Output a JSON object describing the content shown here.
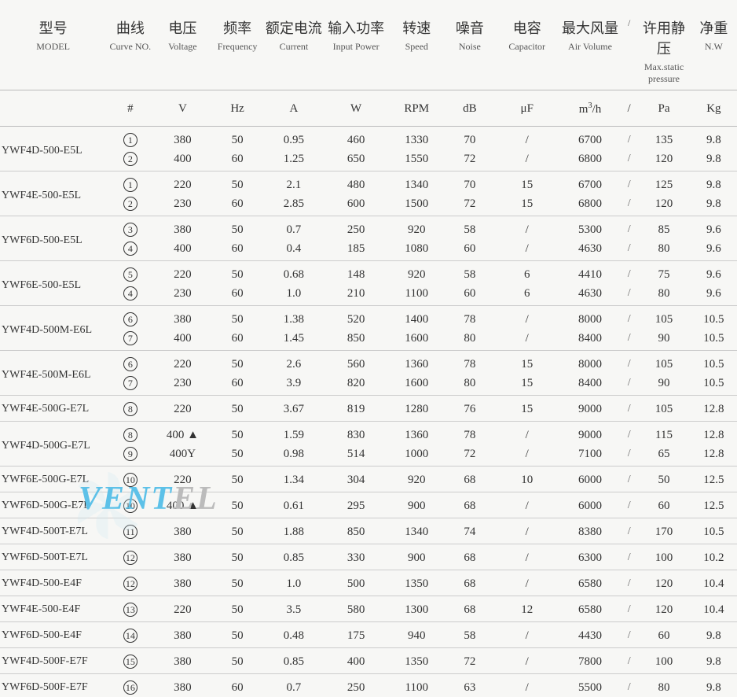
{
  "background_color": "#f7f7f5",
  "border_color": "#cccccc",
  "text_color": "#333333",
  "watermark": {
    "text_front": "VENT",
    "text_back": "EL",
    "color_front": "#5dc1e8",
    "color_back": "#bbbbbb",
    "fan_fill": "#cfe8f3"
  },
  "headers": [
    {
      "cn": "型号",
      "en": "MODEL",
      "unit": ""
    },
    {
      "cn": "曲线",
      "en": "Curve NO.",
      "unit": "#"
    },
    {
      "cn": "电压",
      "en": "Voltage",
      "unit": "V"
    },
    {
      "cn": "频率",
      "en": "Frequency",
      "unit": "Hz"
    },
    {
      "cn": "额定电流",
      "en": "Current",
      "unit": "A"
    },
    {
      "cn": "输入功率",
      "en": "Input Power",
      "unit": "W"
    },
    {
      "cn": "转速",
      "en": "Speed",
      "unit": "RPM"
    },
    {
      "cn": "噪音",
      "en": "Noise",
      "unit": "dB"
    },
    {
      "cn": "电容",
      "en": "Capacitor",
      "unit": "μF"
    },
    {
      "cn": "最大风量",
      "en": "Air Volume",
      "unit": "m³/h"
    },
    {
      "cn": "/",
      "en": "/",
      "unit": "/"
    },
    {
      "cn": "许用静压",
      "en": "Max.static pressure",
      "unit": "Pa"
    },
    {
      "cn": "净重",
      "en": "N.W",
      "unit": "Kg"
    }
  ],
  "rows": [
    {
      "model": "YWF4D-500-E5L",
      "curve": "1",
      "voltage": "380",
      "freq": "50",
      "current": "0.95",
      "power": "460",
      "speed": "1330",
      "noise": "70",
      "cap": "/",
      "air": "6700",
      "pres": "135",
      "nw": "9.8",
      "rs": 2,
      "top": true
    },
    {
      "model": "",
      "curve": "2",
      "voltage": "400",
      "freq": "60",
      "current": "1.25",
      "power": "650",
      "speed": "1550",
      "noise": "72",
      "cap": "/",
      "air": "6800",
      "pres": "120",
      "nw": "9.8",
      "sep": true
    },
    {
      "model": "YWF4E-500-E5L",
      "curve": "1",
      "voltage": "220",
      "freq": "50",
      "current": "2.1",
      "power": "480",
      "speed": "1340",
      "noise": "70",
      "cap": "15",
      "air": "6700",
      "pres": "125",
      "nw": "9.8",
      "rs": 2,
      "top": true
    },
    {
      "model": "",
      "curve": "2",
      "voltage": "230",
      "freq": "60",
      "current": "2.85",
      "power": "600",
      "speed": "1500",
      "noise": "72",
      "cap": "15",
      "air": "6800",
      "pres": "120",
      "nw": "9.8",
      "sep": true
    },
    {
      "model": "YWF6D-500-E5L",
      "curve": "3",
      "voltage": "380",
      "freq": "50",
      "current": "0.7",
      "power": "250",
      "speed": "920",
      "noise": "58",
      "cap": "/",
      "air": "5300",
      "pres": "85",
      "nw": "9.6",
      "rs": 2,
      "top": true
    },
    {
      "model": "",
      "curve": "4",
      "voltage": "400",
      "freq": "60",
      "current": "0.4",
      "power": "185",
      "speed": "1080",
      "noise": "60",
      "cap": "/",
      "air": "4630",
      "pres": "80",
      "nw": "9.6",
      "sep": true
    },
    {
      "model": "YWF6E-500-E5L",
      "curve": "5",
      "voltage": "220",
      "freq": "50",
      "current": "0.68",
      "power": "148",
      "speed": "920",
      "noise": "58",
      "cap": "6",
      "air": "4410",
      "pres": "75",
      "nw": "9.6",
      "rs": 2,
      "top": true
    },
    {
      "model": "",
      "curve": "4",
      "voltage": "230",
      "freq": "60",
      "current": "1.0",
      "power": "210",
      "speed": "1100",
      "noise": "60",
      "cap": "6",
      "air": "4630",
      "pres": "80",
      "nw": "9.6",
      "sep": true
    },
    {
      "model": "YWF4D-500M-E6L",
      "curve": "6",
      "voltage": "380",
      "freq": "50",
      "current": "1.38",
      "power": "520",
      "speed": "1400",
      "noise": "78",
      "cap": "/",
      "air": "8000",
      "pres": "105",
      "nw": "10.5",
      "rs": 2,
      "top": true
    },
    {
      "model": "",
      "curve": "7",
      "voltage": "400",
      "freq": "60",
      "current": "1.45",
      "power": "850",
      "speed": "1600",
      "noise": "80",
      "cap": "/",
      "air": "8400",
      "pres": "90",
      "nw": "10.5",
      "sep": true
    },
    {
      "model": "YWF4E-500M-E6L",
      "curve": "6",
      "voltage": "220",
      "freq": "50",
      "current": "2.6",
      "power": "560",
      "speed": "1360",
      "noise": "78",
      "cap": "15",
      "air": "8000",
      "pres": "105",
      "nw": "10.5",
      "rs": 2,
      "top": true
    },
    {
      "model": "",
      "curve": "7",
      "voltage": "230",
      "freq": "60",
      "current": "3.9",
      "power": "820",
      "speed": "1600",
      "noise": "80",
      "cap": "15",
      "air": "8400",
      "pres": "90",
      "nw": "10.5",
      "sep": true
    },
    {
      "model": "YWF4E-500G-E7L",
      "curve": "8",
      "voltage": "220",
      "freq": "50",
      "current": "3.67",
      "power": "819",
      "speed": "1280",
      "noise": "76",
      "cap": "15",
      "air": "9000",
      "pres": "105",
      "nw": "12.8",
      "rs": 1,
      "sep": true,
      "top": true
    },
    {
      "model": "YWF4D-500G-E7L",
      "curve": "8",
      "voltage": "400 ▲",
      "freq": "50",
      "current": "1.59",
      "power": "830",
      "speed": "1360",
      "noise": "78",
      "cap": "/",
      "air": "9000",
      "pres": "115",
      "nw": "12.8",
      "rs": 2,
      "top": true
    },
    {
      "model": "",
      "curve": "9",
      "voltage": "400Y",
      "freq": "50",
      "current": "0.98",
      "power": "514",
      "speed": "1000",
      "noise": "72",
      "cap": "/",
      "air": "7100",
      "pres": "65",
      "nw": "12.8",
      "sep": true
    },
    {
      "model": "YWF6E-500G-E7L",
      "curve": "10",
      "voltage": "220",
      "freq": "50",
      "current": "1.34",
      "power": "304",
      "speed": "920",
      "noise": "68",
      "cap": "10",
      "air": "6000",
      "pres": "50",
      "nw": "12.5",
      "rs": 1,
      "sep": true,
      "top": true
    },
    {
      "model": "YWF6D-500G-E7L",
      "curve": "10",
      "voltage": "400 ▲",
      "freq": "50",
      "current": "0.61",
      "power": "295",
      "speed": "900",
      "noise": "68",
      "cap": "/",
      "air": "6000",
      "pres": "60",
      "nw": "12.5",
      "rs": 1,
      "sep": true,
      "top": true
    },
    {
      "model": "YWF4D-500T-E7L",
      "curve": "11",
      "voltage": "380",
      "freq": "50",
      "current": "1.88",
      "power": "850",
      "speed": "1340",
      "noise": "74",
      "cap": "/",
      "air": "8380",
      "pres": "170",
      "nw": "10.5",
      "rs": 1,
      "sep": true,
      "top": true
    },
    {
      "model": "YWF6D-500T-E7L",
      "curve": "12",
      "voltage": "380",
      "freq": "50",
      "current": "0.85",
      "power": "330",
      "speed": "900",
      "noise": "68",
      "cap": "/",
      "air": "6300",
      "pres": "100",
      "nw": "10.2",
      "rs": 1,
      "sep": true,
      "top": true
    },
    {
      "model": "YWF4D-500-E4F",
      "curve": "12",
      "voltage": "380",
      "freq": "50",
      "current": "1.0",
      "power": "500",
      "speed": "1350",
      "noise": "68",
      "cap": "/",
      "air": "6580",
      "pres": "120",
      "nw": "10.4",
      "rs": 1,
      "sep": true,
      "top": true
    },
    {
      "model": "YWF4E-500-E4F",
      "curve": "13",
      "voltage": "220",
      "freq": "50",
      "current": "3.5",
      "power": "580",
      "speed": "1300",
      "noise": "68",
      "cap": "12",
      "air": "6580",
      "pres": "120",
      "nw": "10.4",
      "rs": 1,
      "sep": true,
      "top": true
    },
    {
      "model": "YWF6D-500-E4F",
      "curve": "14",
      "voltage": "380",
      "freq": "50",
      "current": "0.48",
      "power": "175",
      "speed": "940",
      "noise": "58",
      "cap": "/",
      "air": "4430",
      "pres": "60",
      "nw": "9.8",
      "rs": 1,
      "sep": true,
      "top": true
    },
    {
      "model": "YWF4D-500F-E7F",
      "curve": "15",
      "voltage": "380",
      "freq": "50",
      "current": "0.85",
      "power": "400",
      "speed": "1350",
      "noise": "72",
      "cap": "/",
      "air": "7800",
      "pres": "100",
      "nw": "9.8",
      "rs": 1,
      "sep": true,
      "top": true
    },
    {
      "model": "YWF6D-500F-E7F",
      "curve": "16",
      "voltage": "380",
      "freq": "60",
      "current": "0.7",
      "power": "250",
      "speed": "1100",
      "noise": "63",
      "cap": "/",
      "air": "5500",
      "pres": "80",
      "nw": "9.8",
      "rs": 1,
      "top": true
    }
  ]
}
